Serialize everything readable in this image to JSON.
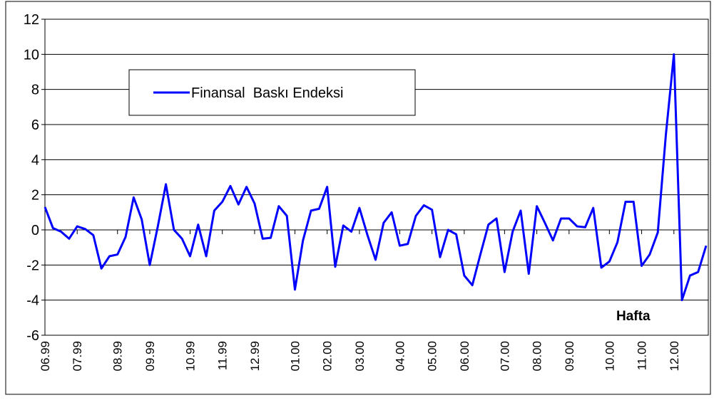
{
  "chart_data": {
    "type": "line",
    "y_annotation": "%",
    "x_annotation": "Hafta",
    "categories": [
      "06.99",
      null,
      null,
      null,
      "07.99",
      null,
      null,
      null,
      null,
      "08.99",
      null,
      null,
      null,
      "09.99",
      null,
      null,
      null,
      null,
      "10.99",
      null,
      null,
      null,
      "11.99",
      null,
      null,
      null,
      "12.99",
      null,
      null,
      null,
      null,
      "01.00",
      null,
      null,
      null,
      "02.00",
      null,
      null,
      null,
      "03.00",
      null,
      null,
      null,
      null,
      "04.00",
      null,
      null,
      null,
      "05.00",
      null,
      null,
      null,
      "06.00",
      null,
      null,
      null,
      null,
      "07.00",
      null,
      null,
      null,
      "08.00",
      null,
      null,
      null,
      "09.00",
      null,
      null,
      null,
      null,
      "10.00",
      null,
      null,
      null,
      "11.00",
      null,
      null,
      null,
      "12.00",
      null,
      null,
      null,
      null
    ],
    "series": [
      {
        "name": "Finansal  Baskı Endeksi",
        "color": "#0000ff",
        "values": [
          1.3,
          0.1,
          -0.1,
          -0.5,
          0.2,
          0.05,
          -0.3,
          -2.2,
          -1.5,
          -1.4,
          -0.4,
          1.85,
          0.6,
          -2.0,
          0.2,
          2.6,
          0.0,
          -0.5,
          -1.5,
          0.3,
          -1.5,
          1.1,
          1.6,
          2.5,
          1.45,
          2.45,
          1.5,
          -0.5,
          -0.45,
          1.35,
          0.8,
          -3.4,
          -0.6,
          1.1,
          1.2,
          2.45,
          -2.1,
          0.25,
          -0.1,
          1.25,
          -0.3,
          -1.7,
          0.4,
          1.0,
          -0.9,
          -0.8,
          0.8,
          1.4,
          1.15,
          -1.55,
          0.0,
          -0.25,
          -2.6,
          -3.15,
          -1.4,
          0.3,
          0.65,
          -2.4,
          -0.1,
          1.1,
          -2.5,
          1.35,
          0.4,
          -0.6,
          0.65,
          0.65,
          0.2,
          0.15,
          1.25,
          -2.15,
          -1.8,
          -0.7,
          1.6,
          1.6,
          -2.05,
          -1.4,
          -0.15,
          5.4,
          10.0,
          -4.0,
          -2.6,
          -2.4,
          -0.9
        ]
      }
    ],
    "ylim": [
      -6,
      12
    ],
    "yticks": [
      -6,
      -4,
      -2,
      0,
      2,
      4,
      6,
      8,
      10,
      12
    ],
    "grid": true
  }
}
